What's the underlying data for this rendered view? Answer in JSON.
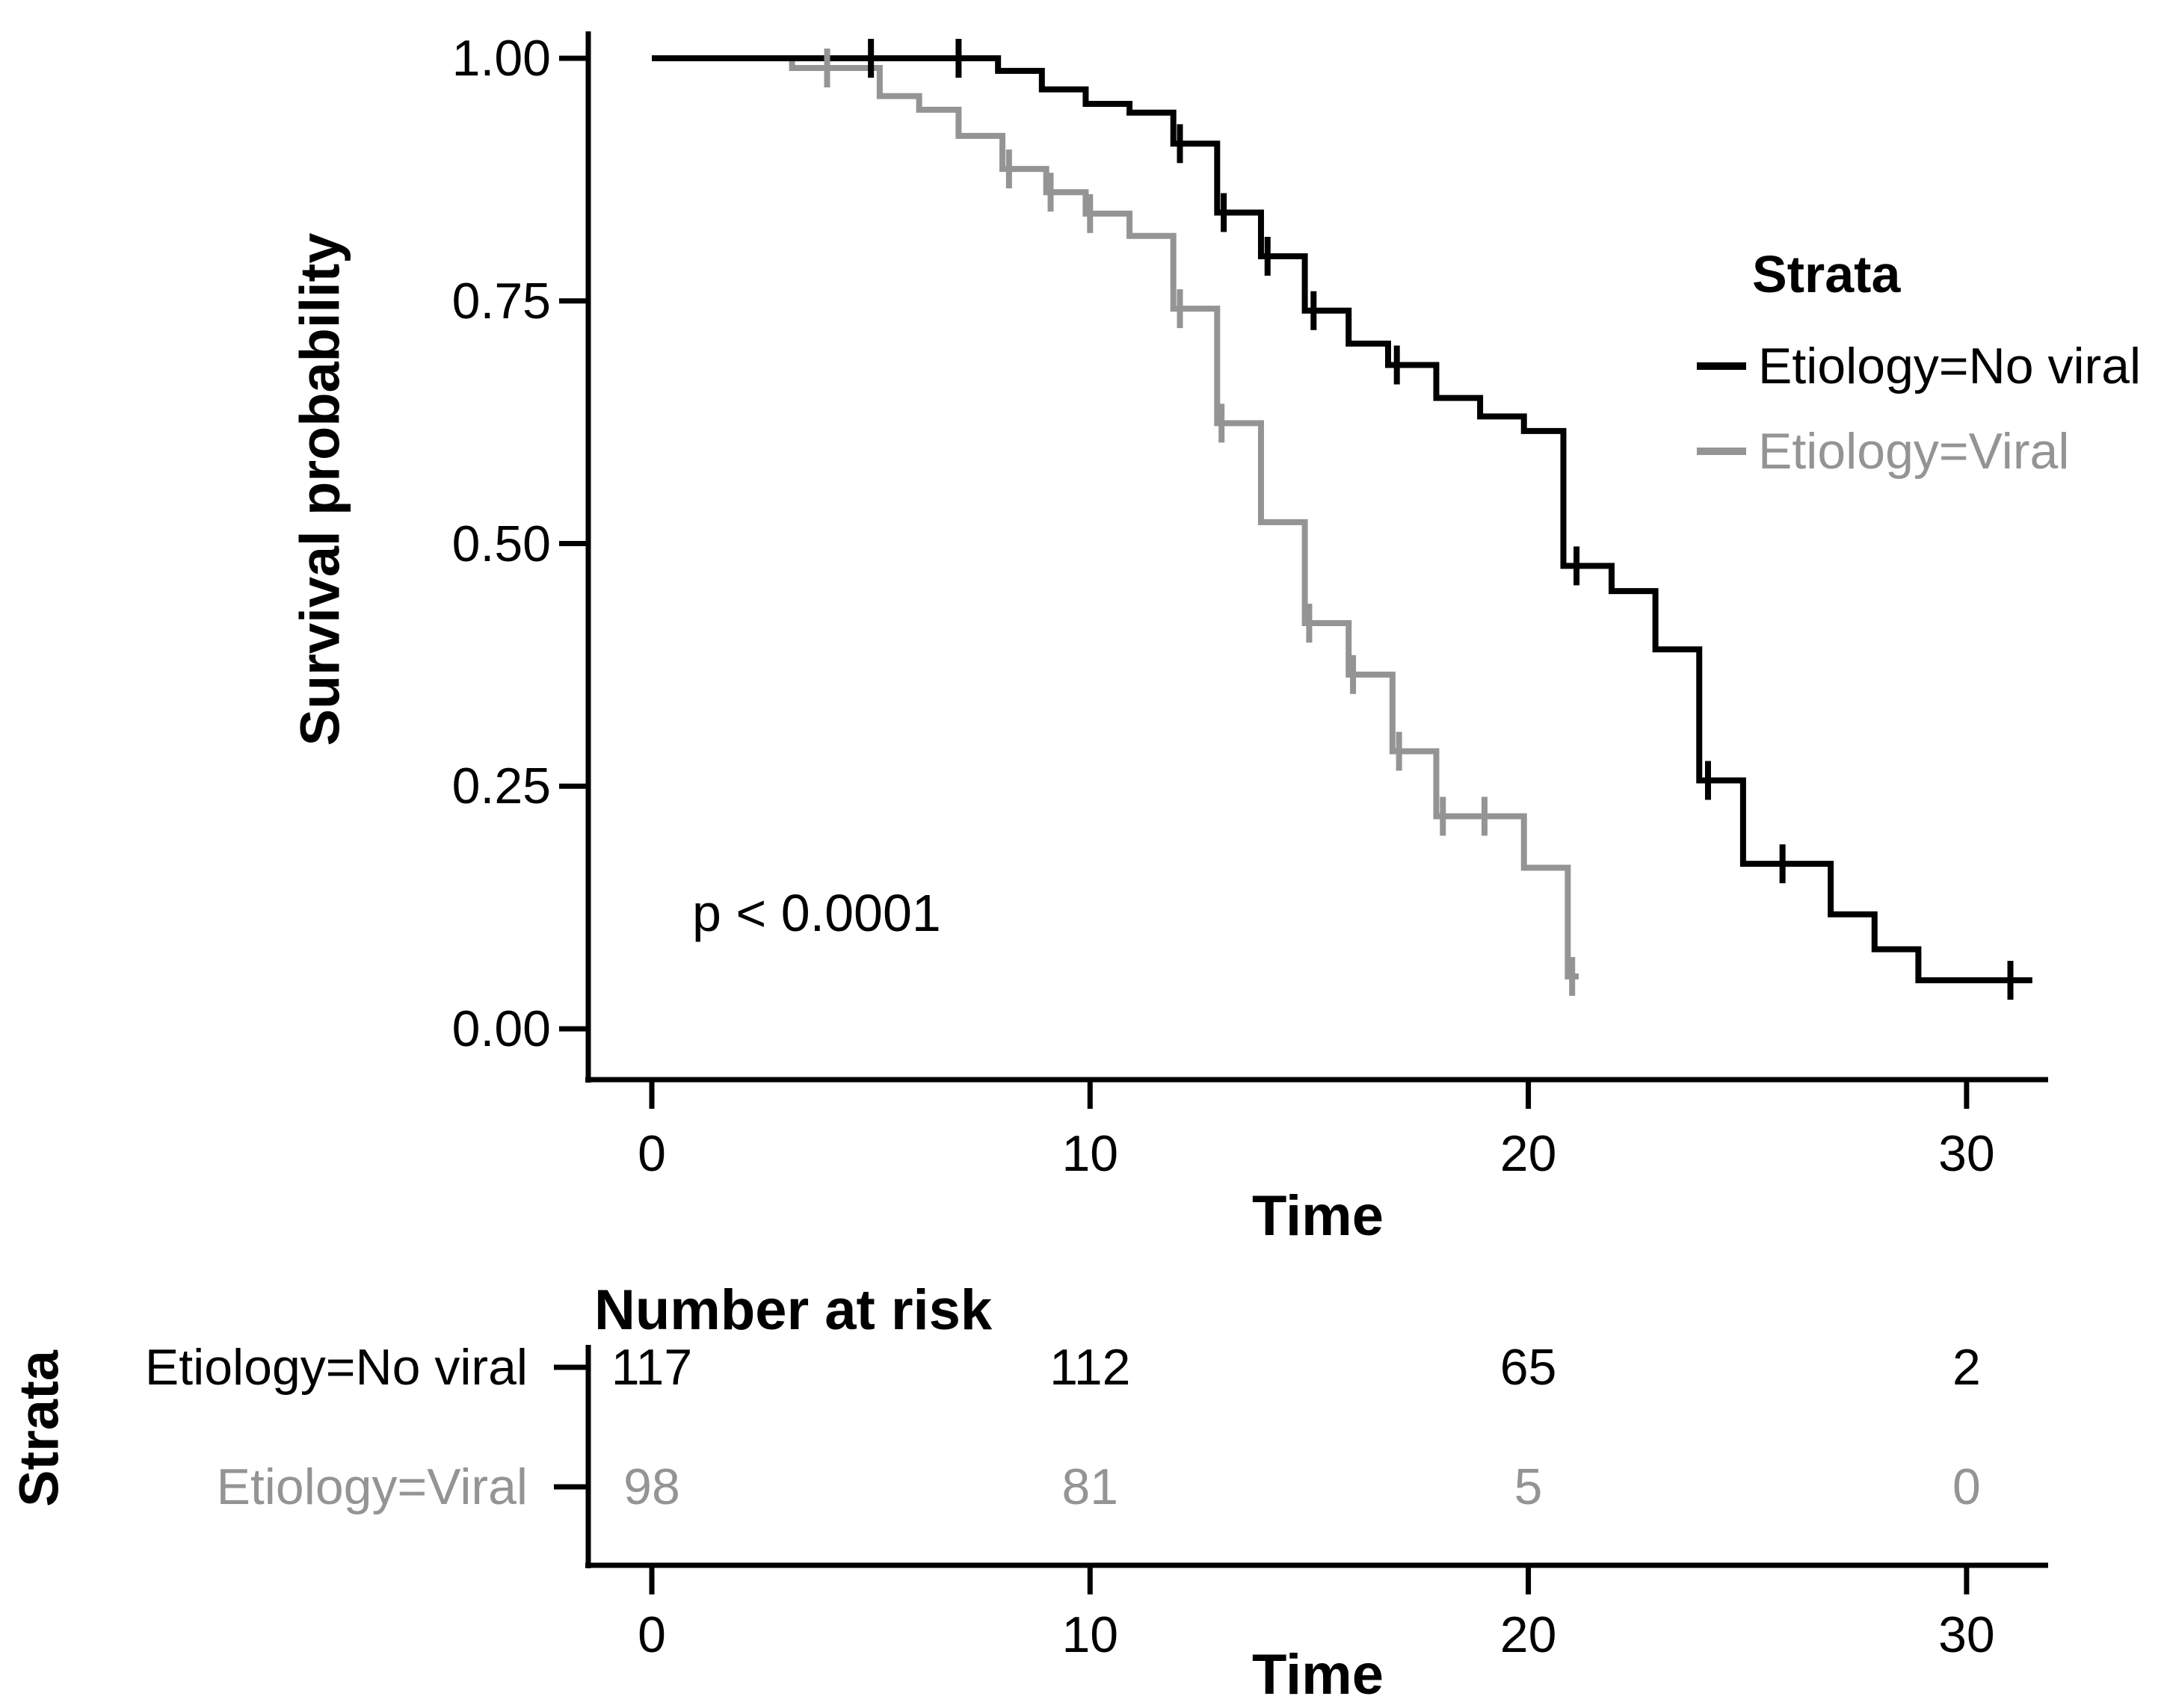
{
  "figure": {
    "p_value": "p < 0.0001",
    "axes": {
      "x_label": "Time",
      "y_label": "Survival probability",
      "x_tick_labels": [
        "0",
        "10",
        "20",
        "30"
      ],
      "y_tick_labels": [
        "1.00",
        "0.75",
        "0.50",
        "0.25",
        "0.00"
      ]
    },
    "legend": {
      "title": "Strata",
      "entries": [
        {
          "label": "Etiology=No viral",
          "color": "#000000"
        },
        {
          "label": "Etiology=Viral",
          "color": "#949494"
        }
      ]
    },
    "risk_table": {
      "title": "Number at risk",
      "strata_label": "Strata",
      "axis_label": "Time",
      "x_tick_labels": [
        "0",
        "10",
        "20",
        "30"
      ],
      "rows": [
        {
          "label": "Etiology=No viral",
          "color": "#000000",
          "counts": [
            "117",
            "112",
            "65",
            "2"
          ]
        },
        {
          "label": "Etiology=Viral",
          "color": "#949494",
          "counts": [
            "98",
            "81",
            "5",
            "0"
          ]
        }
      ]
    }
  },
  "chart_data": {
    "type": "line",
    "subtype": "kaplan-meier-step-curves",
    "title": "",
    "xlabel": "Time",
    "ylabel": "Survival probability",
    "xlim": [
      0,
      31.5
    ],
    "ylim": [
      0.0,
      1.0
    ],
    "x_ticks": [
      0,
      10,
      20,
      30
    ],
    "y_ticks": [
      1.0,
      0.75,
      0.5,
      0.25,
      0.0
    ],
    "grid": false,
    "legend_position": "right",
    "annotation": "p < 0.0001",
    "series": [
      {
        "name": "Etiology=No viral",
        "color": "#000000",
        "steps": [
          [
            0,
            1.0
          ],
          [
            7.9,
            0.987
          ],
          [
            8.9,
            0.968
          ],
          [
            9.9,
            0.953
          ],
          [
            10.9,
            0.944
          ],
          [
            11.9,
            0.912
          ],
          [
            12.9,
            0.841
          ],
          [
            13.9,
            0.796
          ],
          [
            14.9,
            0.74
          ],
          [
            15.9,
            0.706
          ],
          [
            16.8,
            0.684
          ],
          [
            17.9,
            0.65
          ],
          [
            18.9,
            0.631
          ],
          [
            19.9,
            0.616
          ],
          [
            20.8,
            0.477
          ],
          [
            21.9,
            0.451
          ],
          [
            22.9,
            0.391
          ],
          [
            23.9,
            0.256
          ],
          [
            24.9,
            0.17
          ],
          [
            26.9,
            0.118
          ],
          [
            27.9,
            0.082
          ],
          [
            28.9,
            0.05
          ]
        ],
        "end_time": 31.5,
        "censors": [
          [
            5.0,
            1.0
          ],
          [
            7.0,
            1.0
          ],
          [
            12.05,
            0.912
          ],
          [
            13.05,
            0.841
          ],
          [
            14.05,
            0.796
          ],
          [
            15.1,
            0.74
          ],
          [
            17.0,
            0.684
          ],
          [
            21.1,
            0.477
          ],
          [
            24.1,
            0.256
          ],
          [
            25.8,
            0.17
          ],
          [
            31.0,
            0.05
          ]
        ],
        "number_at_risk": [
          117,
          112,
          65,
          2
        ]
      },
      {
        "name": "Etiology=Viral",
        "color": "#949494",
        "steps": [
          [
            0,
            1.0
          ],
          [
            3.2,
            0.99
          ],
          [
            5.2,
            0.961
          ],
          [
            6.1,
            0.947
          ],
          [
            7.0,
            0.92
          ],
          [
            8.0,
            0.886
          ],
          [
            9.0,
            0.862
          ],
          [
            9.9,
            0.84
          ],
          [
            10.9,
            0.817
          ],
          [
            11.9,
            0.742
          ],
          [
            12.9,
            0.624
          ],
          [
            13.9,
            0.522
          ],
          [
            14.9,
            0.418
          ],
          [
            15.9,
            0.365
          ],
          [
            16.9,
            0.286
          ],
          [
            17.9,
            0.219
          ],
          [
            19.9,
            0.166
          ],
          [
            20.9,
            0.054
          ]
        ],
        "end_time": 21.15,
        "censors": [
          [
            4.0,
            0.99
          ],
          [
            8.15,
            0.886
          ],
          [
            9.1,
            0.862
          ],
          [
            10.0,
            0.84
          ],
          [
            12.05,
            0.742
          ],
          [
            13.0,
            0.624
          ],
          [
            15.0,
            0.418
          ],
          [
            16.0,
            0.365
          ],
          [
            17.05,
            0.286
          ],
          [
            18.05,
            0.219
          ],
          [
            19.0,
            0.219
          ],
          [
            21.0,
            0.054
          ]
        ],
        "number_at_risk": [
          98,
          81,
          5,
          0
        ]
      }
    ]
  }
}
